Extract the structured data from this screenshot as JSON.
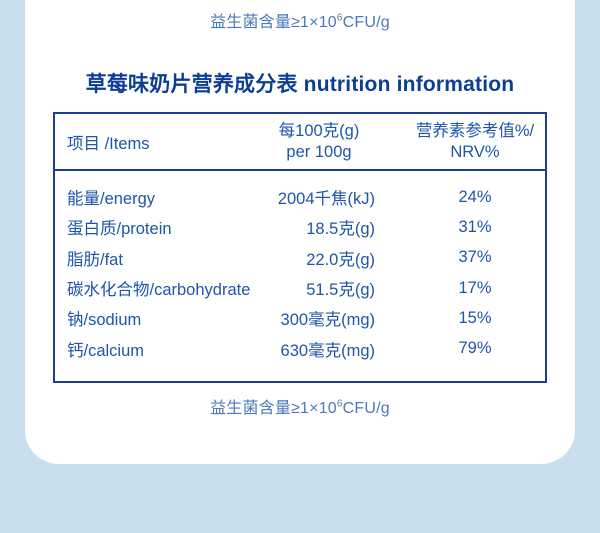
{
  "colors": {
    "background": "#c9dfee",
    "card": "#ffffff",
    "table_border": "#1e3e96",
    "table_text": "#1e55ad",
    "title_text": "#0c3f94",
    "note_text": "#4b79bb"
  },
  "top_note": {
    "prefix": "益生菌含量≥1×10",
    "superscript": "6",
    "suffix": "CFU/g"
  },
  "title": "草莓味奶片营养成分表 nutrition information",
  "table": {
    "headers": {
      "items": "项目 /Items",
      "per100g_line1": "每100克(g)",
      "per100g_line2": "per 100g",
      "nrv_line1": "营养素参考值%/",
      "nrv_line2": "NRV%"
    },
    "rows": [
      {
        "item": "能量/energy",
        "value": "2004千焦(kJ)",
        "nrv": "24%"
      },
      {
        "item": "蛋白质/protein",
        "value": "18.5克(g)",
        "nrv": "31%"
      },
      {
        "item": "脂肪/fat",
        "value": "22.0克(g)",
        "nrv": "37%"
      },
      {
        "item": "碳水化合物/carbohydrate",
        "value": "51.5克(g)",
        "nrv": "17%"
      },
      {
        "item": "钠/sodium",
        "value": "300毫克(mg)",
        "nrv": "15%"
      },
      {
        "item": "钙/calcium",
        "value": "630毫克(mg)",
        "nrv": "79%"
      }
    ]
  },
  "bottom_note": {
    "prefix": "益生菌含量≥1×10",
    "superscript": "6",
    "suffix": "CFU/g"
  }
}
